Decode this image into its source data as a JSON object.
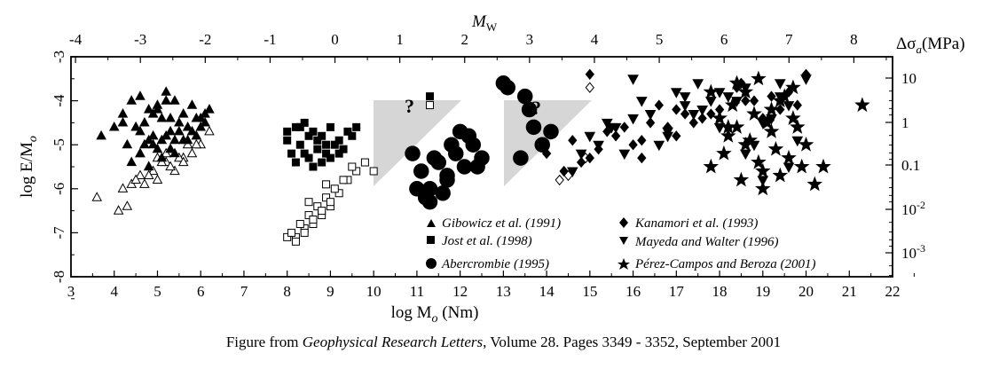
{
  "chart_data": {
    "type": "scatter",
    "x_axis": {
      "label_main": "log M",
      "label_sub": "o",
      "label_unit": " (Nm)",
      "range": [
        3,
        22
      ],
      "ticks": [
        "3",
        "4",
        "5",
        "6",
        "7",
        "8",
        "9",
        "10",
        "11",
        "12",
        "13",
        "14",
        "15",
        "16",
        "17",
        "18",
        "19",
        "20",
        "21",
        "22"
      ]
    },
    "y_axis": {
      "label_main": "log E/M",
      "label_sub": "o",
      "range": [
        -8,
        -3
      ],
      "ticks": [
        "-3",
        "-4",
        "-5",
        "-6",
        "-7",
        "-8"
      ]
    },
    "top_axis": {
      "label_main": "M",
      "label_sub": "W",
      "ticks": [
        "-4",
        "-3",
        "-2",
        "-1",
        "0",
        "1",
        "2",
        "3",
        "4",
        "5",
        "6",
        "7",
        "8"
      ]
    },
    "right_axis": {
      "label_main": "Δσ",
      "label_sub": "a",
      "label_unit": "(MPa)",
      "ticks": [
        {
          "base": "10",
          "exp": ""
        },
        {
          "base": "1",
          "exp": ""
        },
        {
          "base": "0.1",
          "exp": ""
        },
        {
          "base": "10",
          "exp": "-2"
        },
        {
          "base": "10",
          "exp": "-3"
        }
      ]
    },
    "question_marks": [
      "?",
      "?"
    ],
    "series": [
      {
        "name": "Gibowicz et al. (1991)",
        "marker": "triangle-up",
        "filled_x": [
          3.7,
          4.2,
          4.4,
          4.6,
          4.8,
          5.0,
          5.2,
          5.4,
          5.6,
          5.8,
          6.0,
          6.2,
          4.5,
          4.7,
          4.9,
          5.1,
          5.3,
          5.5,
          5.7,
          5.9,
          6.1,
          4.3,
          4.8,
          5.0,
          5.2,
          5.4,
          4.6,
          5.6,
          5.1,
          4.4,
          4.7,
          5.3,
          5.8,
          6.0,
          4.9,
          5.5,
          4.2,
          5.0,
          5.2,
          4.6,
          4.8,
          5.4,
          5.7,
          4.5,
          5.1,
          5.9,
          6.1,
          4.0,
          4.9,
          5.3
        ],
        "filled_y": [
          -4.8,
          -4.3,
          -4.0,
          -3.9,
          -4.2,
          -4.1,
          -3.8,
          -4.0,
          -4.3,
          -4.1,
          -4.4,
          -4.2,
          -4.6,
          -4.5,
          -4.3,
          -4.4,
          -4.7,
          -4.5,
          -4.6,
          -4.4,
          -4.5,
          -5.0,
          -4.9,
          -5.1,
          -4.8,
          -4.9,
          -5.2,
          -4.9,
          -5.3,
          -5.4,
          -5.0,
          -5.1,
          -4.7,
          -4.6,
          -4.8,
          -4.7,
          -4.5,
          -4.2,
          -4.0,
          -4.7,
          -5.5,
          -5.2,
          -4.9,
          -4.6,
          -4.9,
          -4.8,
          -4.3,
          -4.6,
          -5.0,
          -4.4
        ],
        "open_x": [
          3.6,
          4.1,
          4.4,
          4.6,
          4.8,
          5.0,
          5.2,
          5.4,
          5.6,
          5.8,
          6.0,
          6.2,
          4.3,
          4.7,
          4.9,
          5.1,
          5.3,
          5.5,
          5.7,
          4.5,
          4.8,
          5.0,
          5.3,
          4.2,
          4.6,
          5.2,
          5.6,
          5.9
        ],
        "open_y": [
          -6.2,
          -6.5,
          -5.9,
          -5.7,
          -5.5,
          -5.8,
          -5.4,
          -5.6,
          -5.3,
          -5.2,
          -5.0,
          -4.7,
          -6.4,
          -5.9,
          -5.6,
          -5.4,
          -5.1,
          -5.3,
          -5.0,
          -5.8,
          -5.7,
          -5.3,
          -5.5,
          -6.0,
          -5.2,
          -5.2,
          -5.4,
          -5.0
        ]
      },
      {
        "name": "Jost et al. (1998)",
        "marker": "square",
        "filled_x": [
          8.0,
          8.2,
          8.4,
          8.6,
          8.8,
          9.0,
          9.2,
          9.4,
          9.6,
          8.1,
          8.3,
          8.5,
          8.7,
          8.9,
          9.1,
          9.3,
          8.2,
          8.4,
          8.6,
          8.8,
          9.0,
          8.0,
          8.5,
          8.7,
          9.2,
          9.5,
          8.3,
          8.9,
          11.3
        ],
        "filled_y": [
          -4.9,
          -4.6,
          -4.5,
          -4.7,
          -4.8,
          -4.6,
          -4.9,
          -4.7,
          -4.6,
          -5.2,
          -5.0,
          -5.3,
          -5.1,
          -5.2,
          -5.0,
          -5.1,
          -5.4,
          -5.2,
          -5.5,
          -5.4,
          -5.3,
          -4.7,
          -4.8,
          -4.9,
          -5.2,
          -4.8,
          -4.6,
          -5.0,
          -3.9
        ],
        "open_x": [
          8.0,
          8.2,
          8.4,
          8.6,
          8.8,
          9.0,
          9.2,
          9.4,
          9.6,
          8.1,
          8.3,
          8.5,
          8.7,
          8.9,
          9.1,
          9.3,
          8.2,
          8.4,
          8.6,
          8.8,
          9.0,
          9.5,
          9.8,
          10.0,
          8.5,
          8.9,
          11.3
        ],
        "open_y": [
          -7.1,
          -7.1,
          -6.9,
          -6.8,
          -6.6,
          -6.4,
          -6.1,
          -5.8,
          -5.6,
          -7.0,
          -6.8,
          -6.6,
          -6.4,
          -6.2,
          -6.0,
          -5.8,
          -7.2,
          -7.0,
          -6.7,
          -6.5,
          -6.3,
          -5.5,
          -5.4,
          -5.6,
          -6.3,
          -5.9,
          -4.1
        ]
      },
      {
        "name": "Abercrombie (1995)",
        "marker": "circle",
        "filled_x": [
          10.9,
          11.1,
          11.3,
          11.5,
          11.7,
          11.9,
          12.1,
          12.3,
          12.5,
          11.0,
          11.2,
          11.4,
          11.6,
          11.8,
          12.0,
          12.2,
          11.3,
          11.7,
          12.4,
          13.0,
          13.1,
          13.5,
          13.6,
          13.7,
          13.9,
          14.1,
          13.4
        ],
        "filled_y": [
          -5.2,
          -5.6,
          -6.0,
          -5.4,
          -5.7,
          -5.2,
          -5.5,
          -5.0,
          -5.3,
          -6.0,
          -6.2,
          -5.3,
          -6.1,
          -5.0,
          -4.7,
          -4.8,
          -6.3,
          -5.8,
          -5.5,
          -3.6,
          -3.7,
          -3.9,
          -4.2,
          -4.6,
          -5.0,
          -4.7,
          -5.3
        ],
        "open_x": [],
        "open_y": []
      },
      {
        "name": "Kanamori et al. (1993)",
        "marker": "diamond",
        "filled_x": [
          14.0,
          14.4,
          14.8,
          15.2,
          15.6,
          16.0,
          16.4,
          16.8,
          17.2,
          17.6,
          18.0,
          18.4,
          18.8,
          19.2,
          19.6,
          20.0,
          14.6,
          15.0,
          15.4,
          15.8,
          16.2,
          16.6,
          17.0,
          17.4,
          17.8,
          18.2,
          18.6,
          19.0,
          19.4,
          19.8,
          15.0,
          16.2,
          17.0,
          18.5
        ],
        "filled_y": [
          -5.2,
          -5.6,
          -5.4,
          -5.1,
          -4.8,
          -5.0,
          -4.5,
          -4.6,
          -4.3,
          -4.4,
          -4.2,
          -3.7,
          -4.0,
          -3.9,
          -3.8,
          -3.4,
          -4.9,
          -5.3,
          -4.7,
          -4.6,
          -4.9,
          -4.1,
          -4.2,
          -4.5,
          -4.3,
          -4.6,
          -4.0,
          -4.4,
          -4.2,
          -4.1,
          -3.4,
          -5.3,
          -4.8,
          -3.6
        ],
        "open_x": [
          14.3,
          14.5,
          14.9,
          15.0
        ],
        "open_y": [
          -5.8,
          -5.7,
          -5.3,
          -3.7
        ]
      },
      {
        "name": "Mayeda and Walter (1996)",
        "marker": "triangle-down",
        "filled_x": [
          14.6,
          14.8,
          15.2,
          15.6,
          16.0,
          16.4,
          16.8,
          17.2,
          17.6,
          18.0,
          18.4,
          18.8,
          19.2,
          19.6,
          20.0,
          15.0,
          15.4,
          15.8,
          16.2,
          16.6,
          17.0,
          17.4,
          17.8,
          18.2,
          18.6,
          19.0,
          19.4,
          19.8,
          16.0,
          17.2,
          18.0,
          19.0,
          19.6,
          17.5,
          16.8,
          18.6,
          19.4,
          15.5
        ],
        "filled_y": [
          -5.6,
          -5.2,
          -5.0,
          -4.6,
          -4.4,
          -4.3,
          -4.8,
          -3.9,
          -4.2,
          -4.6,
          -4.0,
          -5.0,
          -4.4,
          -4.1,
          -3.5,
          -4.8,
          -4.5,
          -5.2,
          -4.0,
          -5.0,
          -3.8,
          -4.3,
          -4.0,
          -3.9,
          -5.2,
          -4.5,
          -3.6,
          -4.9,
          -3.5,
          -4.1,
          -3.8,
          -5.8,
          -5.5,
          -3.6,
          -4.7,
          -3.7,
          -3.9,
          -4.6
        ]
      },
      {
        "name": "Pérez-Campos and Beroza (2001)",
        "marker": "star",
        "filled_x": [
          17.8,
          18.0,
          18.2,
          18.4,
          18.6,
          18.8,
          19.0,
          19.2,
          19.4,
          19.6,
          19.8,
          20.0,
          18.1,
          18.3,
          18.5,
          18.7,
          18.9,
          19.1,
          19.3,
          19.5,
          19.7,
          19.9,
          18.6,
          19.0,
          19.4,
          18.4,
          19.2,
          20.2,
          20.4,
          21.3,
          17.8,
          18.9,
          19.7,
          18.2
        ],
        "filled_y": [
          -5.5,
          -4.4,
          -4.8,
          -3.6,
          -5.0,
          -4.3,
          -5.6,
          -4.7,
          -4.0,
          -5.3,
          -4.6,
          -5.0,
          -5.2,
          -4.1,
          -5.8,
          -4.9,
          -5.4,
          -4.5,
          -5.1,
          -3.9,
          -4.4,
          -5.5,
          -3.8,
          -6.0,
          -5.7,
          -4.6,
          -4.2,
          -5.9,
          -5.5,
          -4.1,
          -3.8,
          -3.5,
          -3.7,
          -4.6
        ]
      }
    ],
    "grid": false,
    "legend": "inside-bottom-right"
  },
  "caption": {
    "prefix": "Figure from ",
    "journal": "Geophysical Research Letters",
    "suffix": ", Volume 28. Pages 3349 - 3352, September 2001"
  }
}
